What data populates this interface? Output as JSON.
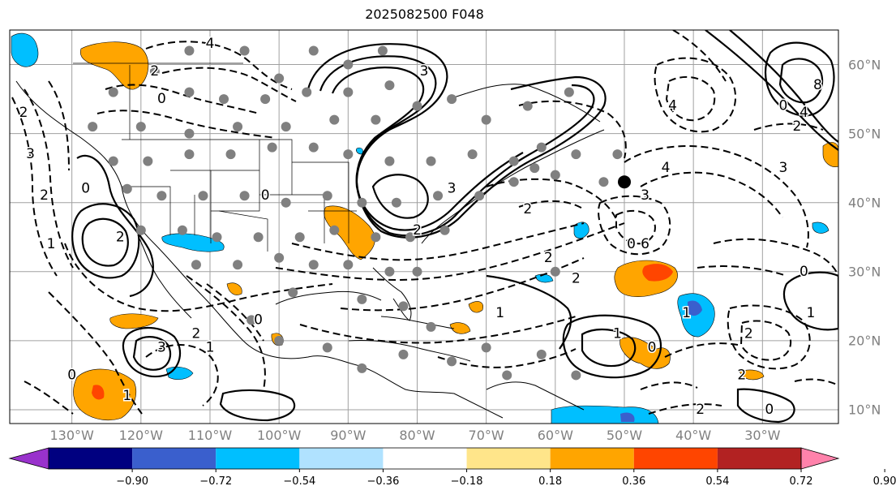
{
  "title": "2025082500 F048",
  "map": {
    "projection": "equirectangular",
    "lon_range": [
      -139,
      -19
    ],
    "lat_range": [
      8,
      65
    ],
    "lon_labels": [
      "130°W",
      "120°W",
      "110°W",
      "100°W",
      "90°W",
      "80°W",
      "70°W",
      "60°W",
      "50°W",
      "40°W",
      "30°W"
    ],
    "lon_values": [
      -130,
      -120,
      -110,
      -100,
      -90,
      -80,
      -70,
      -60,
      -50,
      -40,
      -30
    ],
    "lat_labels": [
      "60°N",
      "50°N",
      "40°N",
      "30°N",
      "20°N",
      "10°N"
    ],
    "lat_values": [
      60,
      50,
      40,
      30,
      20,
      10
    ],
    "grid_color": "#a0a0a0",
    "marker": {
      "lon": -50,
      "lat": 43,
      "shape": "filled-circle"
    },
    "contour_labels": [
      {
        "text": "3",
        "lon": -79,
        "lat": 59
      },
      {
        "text": "2",
        "lon": -118,
        "lat": 59
      },
      {
        "text": "0",
        "lon": -117,
        "lat": 55
      },
      {
        "text": "4",
        "lon": -110,
        "lat": 63
      },
      {
        "text": "2",
        "lon": -137,
        "lat": 53
      },
      {
        "text": "3",
        "lon": -136,
        "lat": 47
      },
      {
        "text": "0",
        "lon": -128,
        "lat": 42
      },
      {
        "text": "1",
        "lon": -133,
        "lat": 34
      },
      {
        "text": "2",
        "lon": -134,
        "lat": 41
      },
      {
        "text": "2",
        "lon": -123,
        "lat": 35
      },
      {
        "text": "8",
        "lon": -22,
        "lat": 57
      },
      {
        "text": "0",
        "lon": -27,
        "lat": 54
      },
      {
        "text": "2",
        "lon": -25,
        "lat": 51
      },
      {
        "text": "4",
        "lon": -24,
        "lat": 53
      },
      {
        "text": "3",
        "lon": -27,
        "lat": 45
      },
      {
        "text": "4",
        "lon": -43,
        "lat": 54
      },
      {
        "text": "4",
        "lon": -44,
        "lat": 45
      },
      {
        "text": "3",
        "lon": -47,
        "lat": 41
      },
      {
        "text": "6",
        "lon": -47,
        "lat": 34
      },
      {
        "text": "0",
        "lon": -49,
        "lat": 34
      },
      {
        "text": "2",
        "lon": -64,
        "lat": 39
      },
      {
        "text": "2",
        "lon": -57,
        "lat": 29
      },
      {
        "text": "2",
        "lon": -61,
        "lat": 32
      },
      {
        "text": "1",
        "lon": -51,
        "lat": 21
      },
      {
        "text": "0",
        "lon": -46,
        "lat": 19
      },
      {
        "text": "2",
        "lon": -32,
        "lat": 21
      },
      {
        "text": "2",
        "lon": -33,
        "lat": 15
      },
      {
        "text": "2",
        "lon": -39,
        "lat": 10
      },
      {
        "text": "0",
        "lon": -29,
        "lat": 10
      },
      {
        "text": "1",
        "lon": -41,
        "lat": 24
      },
      {
        "text": "1",
        "lon": -23,
        "lat": 24
      },
      {
        "text": "0",
        "lon": -24,
        "lat": 30
      },
      {
        "text": "3",
        "lon": -117,
        "lat": 19
      },
      {
        "text": "2",
        "lon": -112,
        "lat": 21
      },
      {
        "text": "1",
        "lon": -110,
        "lat": 19
      },
      {
        "text": "0",
        "lon": -103,
        "lat": 23
      },
      {
        "text": "0",
        "lon": -130,
        "lat": 15
      },
      {
        "text": "1",
        "lon": -122,
        "lat": 12
      },
      {
        "text": "1",
        "lon": -68,
        "lat": 24
      },
      {
        "text": "0",
        "lon": -102,
        "lat": 41
      },
      {
        "text": "2",
        "lon": -80,
        "lat": 36
      },
      {
        "text": "3",
        "lon": -75,
        "lat": 42
      }
    ]
  },
  "colorbar": {
    "tick_labels": [
      "−0.90",
      "−0.72",
      "−0.54",
      "−0.36",
      "−0.18",
      "0.18",
      "0.36",
      "0.54",
      "0.72",
      "0.90"
    ],
    "tick_values": [
      -0.9,
      -0.72,
      -0.54,
      -0.36,
      -0.18,
      0.18,
      0.36,
      0.54,
      0.72,
      0.9
    ],
    "colors": [
      "#9932cc",
      "#000080",
      "#3a5fcd",
      "#00bfff",
      "#b0e2ff",
      "#ffffff",
      "#ffe58a",
      "#ffa500",
      "#ff4500",
      "#b22222",
      "#ff82ab"
    ],
    "extend": "both"
  }
}
